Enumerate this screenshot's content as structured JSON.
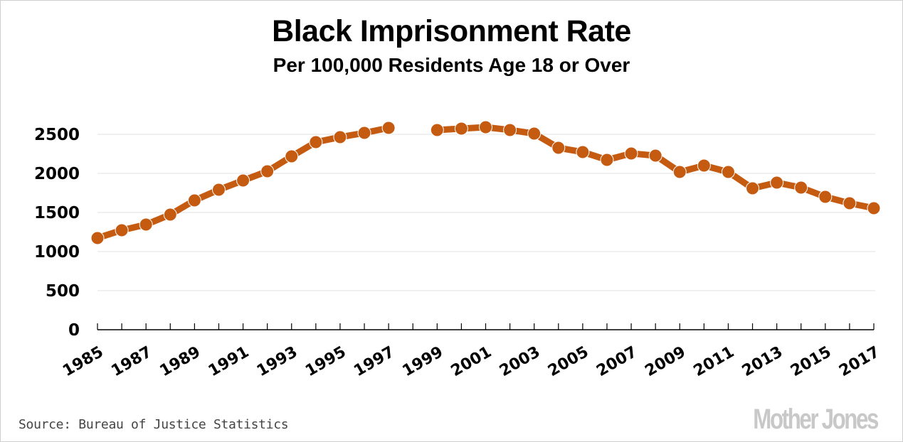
{
  "chart_data": {
    "type": "line",
    "title": "Black Imprisonment Rate",
    "subtitle": "Per 100,000 Residents Age 18 or Over",
    "xlabel": "",
    "ylabel": "",
    "ylim": [
      0,
      2500
    ],
    "yticks": [
      0,
      500,
      1000,
      1500,
      2000,
      2500
    ],
    "xlim": [
      1985,
      2017
    ],
    "xtick_labels": [
      "1985",
      "1987",
      "1989",
      "1991",
      "1993",
      "1995",
      "1997",
      "1999",
      "2001",
      "2003",
      "2005",
      "2007",
      "2009",
      "2011",
      "2013",
      "2015",
      "2017"
    ],
    "grid": true,
    "series": [
      {
        "name": "Black imprisonment rate",
        "color": "#c55a11",
        "x": [
          1985,
          1986,
          1987,
          1988,
          1989,
          1990,
          1991,
          1992,
          1993,
          1994,
          1995,
          1996,
          1997,
          1998,
          1999,
          2000,
          2001,
          2002,
          2003,
          2004,
          2005,
          2006,
          2007,
          2008,
          2009,
          2010,
          2011,
          2012,
          2013,
          2014,
          2015,
          2016,
          2017
        ],
        "values": [
          1173,
          1273,
          1345,
          1473,
          1655,
          1791,
          1909,
          2027,
          2218,
          2400,
          2464,
          2518,
          2582,
          null,
          2555,
          2573,
          2591,
          2555,
          2509,
          2327,
          2273,
          2173,
          2255,
          2227,
          2018,
          2100,
          2018,
          1809,
          1882,
          1818,
          1700,
          1618,
          1555
        ]
      }
    ]
  },
  "footer": {
    "source": "Source: Bureau of Justice Statistics",
    "logo": "Mother Jones"
  }
}
